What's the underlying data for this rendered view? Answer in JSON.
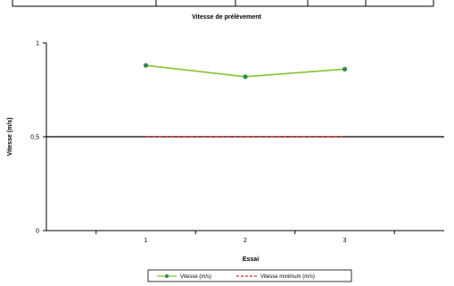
{
  "chart_data": {
    "type": "line",
    "title": "Vitesse de prélèvement",
    "xlabel": "Essai",
    "ylabel": "Vitesse (m/s)",
    "x": [
      1,
      2,
      3
    ],
    "xlim": [
      0,
      4
    ],
    "ylim": [
      0,
      1
    ],
    "yticks": [
      0,
      0.5,
      1
    ],
    "ytick_labels": [
      "0",
      "0,5",
      "1"
    ],
    "xtick_labels": [
      "1",
      "2",
      "3"
    ],
    "grid": false,
    "legend_position": "bottom",
    "series": [
      {
        "name": "Vitesse (m/s)",
        "values": [
          0.88,
          0.82,
          0.86
        ],
        "color": "#86c232",
        "marker_color": "#2e8b57",
        "style": "solid",
        "markers": true
      },
      {
        "name": "Vitesse minimum (m/s)",
        "values": [
          0.5,
          0.5,
          0.5
        ],
        "color": "#d62728",
        "style": "dashed",
        "markers": false
      }
    ],
    "reference_line": {
      "value": 0.5,
      "color": "#000000"
    }
  }
}
